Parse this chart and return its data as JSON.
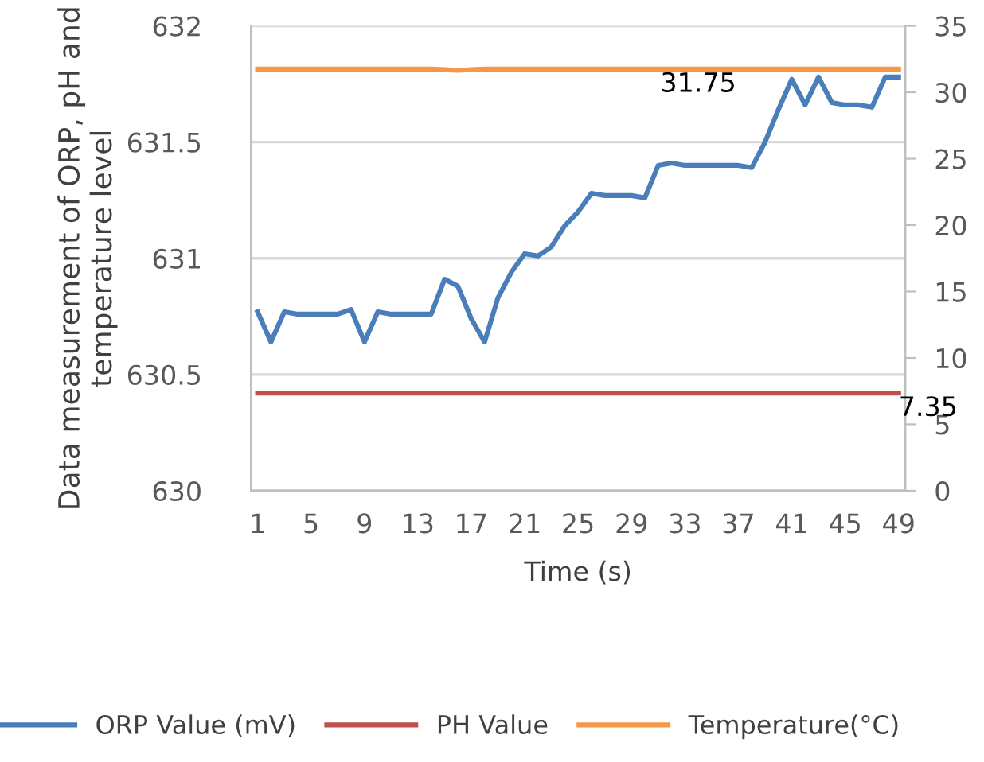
{
  "chart_data": {
    "type": "line",
    "xlabel": "Time (s)",
    "ylabel": "Data measurement of ORP, pH and temperature level",
    "categories": [
      "1",
      null,
      null,
      null,
      "5",
      null,
      null,
      null,
      "9",
      null,
      null,
      null,
      "13",
      null,
      null,
      null,
      "17",
      null,
      null,
      null,
      "21",
      null,
      null,
      null,
      "25",
      null,
      null,
      null,
      "29",
      null,
      null,
      null,
      "33",
      null,
      null,
      null,
      "37",
      null,
      null,
      null,
      "41",
      null,
      null,
      null,
      "45",
      null,
      null,
      null,
      "49"
    ],
    "series": [
      {
        "name": "ORP Value (mV)",
        "color": "#4a7ebb",
        "values": [
          630.77,
          630.64,
          630.77,
          630.76,
          630.76,
          630.76,
          630.76,
          630.78,
          630.64,
          630.77,
          630.76,
          630.76,
          630.76,
          630.76,
          630.91,
          630.88,
          630.74,
          630.64,
          630.83,
          630.94,
          631.02,
          631.01,
          631.05,
          631.14,
          631.2,
          631.28,
          631.27,
          631.27,
          631.27,
          631.26,
          631.4,
          631.41,
          631.4,
          631.4,
          631.4,
          631.4,
          631.4,
          631.39,
          631.5,
          631.64,
          631.77,
          631.66,
          631.78,
          631.67,
          631.66,
          631.66,
          631.65,
          631.78,
          631.78
        ]
      },
      {
        "name": "PH Value",
        "color": "#c0504d",
        "axis": "y2",
        "values": [
          7.35,
          7.35,
          7.35,
          7.35,
          7.35,
          7.35,
          7.35,
          7.35,
          7.35,
          7.35,
          7.35,
          7.35,
          7.35,
          7.35,
          7.35,
          7.35,
          7.35,
          7.35,
          7.35,
          7.35,
          7.35,
          7.35,
          7.35,
          7.35,
          7.35,
          7.35,
          7.35,
          7.35,
          7.35,
          7.35,
          7.35,
          7.35,
          7.35,
          7.35,
          7.35,
          7.35,
          7.35,
          7.35,
          7.35,
          7.35,
          7.35,
          7.35,
          7.35,
          7.35,
          7.35,
          7.35,
          7.35,
          7.35,
          7.35
        ],
        "value_labels": [
          null,
          null,
          null,
          null,
          null,
          null,
          null,
          null,
          null,
          null,
          null,
          null,
          null,
          null,
          null,
          null,
          null,
          null,
          null,
          null,
          null,
          null,
          null,
          null,
          null,
          null,
          null,
          null,
          null,
          null,
          null,
          null,
          null,
          null,
          null,
          null,
          null,
          null,
          null,
          null,
          null,
          null,
          null,
          null,
          null,
          null,
          null,
          null,
          "7.35"
        ]
      },
      {
        "name": "Temperature(°C)",
        "color": "#f79646",
        "axis": "y2",
        "values": [
          31.75,
          31.75,
          31.75,
          31.75,
          31.75,
          31.75,
          31.75,
          31.75,
          31.75,
          31.75,
          31.75,
          31.75,
          31.75,
          31.75,
          31.7,
          31.65,
          31.7,
          31.75,
          31.75,
          31.75,
          31.75,
          31.75,
          31.75,
          31.75,
          31.75,
          31.75,
          31.75,
          31.75,
          31.75,
          31.75,
          31.75,
          31.75,
          31.75,
          31.75,
          31.75,
          31.75,
          31.75,
          31.75,
          31.75,
          31.75,
          31.75,
          31.75,
          31.75,
          31.75,
          31.75,
          31.75,
          31.75,
          31.75,
          31.75
        ],
        "value_labels": [
          null,
          null,
          null,
          null,
          null,
          null,
          null,
          null,
          null,
          null,
          null,
          null,
          null,
          null,
          null,
          null,
          null,
          null,
          null,
          null,
          null,
          null,
          null,
          null,
          null,
          null,
          null,
          null,
          null,
          null,
          null,
          null,
          null,
          "31.75",
          null,
          null,
          null,
          null,
          null,
          null,
          null,
          null,
          null,
          null,
          null,
          null,
          null,
          null,
          null
        ]
      }
    ],
    "ylim": [
      630,
      632
    ],
    "yticks": [
      630,
      {
        "value": 630.5,
        "label": "630.5"
      },
      631,
      {
        "value": 631.5,
        "label": "631.5"
      },
      632
    ],
    "y2lim": [
      0,
      35
    ],
    "y2ticks": [
      0,
      5,
      10,
      15,
      20,
      25,
      30,
      35
    ],
    "grid": "y",
    "legend": "bottom",
    "marker": "none",
    "line_style": "solid"
  }
}
